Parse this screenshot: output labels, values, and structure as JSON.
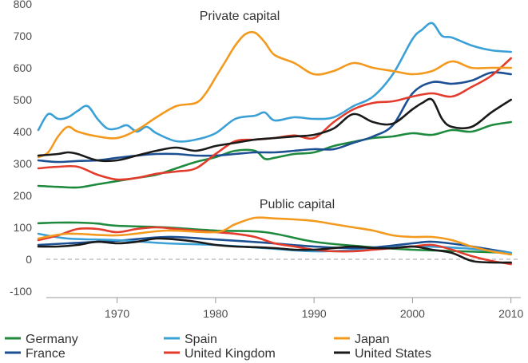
{
  "chart_data": {
    "type": "line",
    "panels": [
      {
        "title": "Private capital",
        "group": "private"
      },
      {
        "title": "Public capital",
        "group": "public"
      }
    ],
    "xlim": [
      1962,
      2011
    ],
    "ylim": [
      -100,
      800
    ],
    "x_ticks": [
      1970,
      1980,
      1990,
      2000,
      2010
    ],
    "y_ticks": [
      -100,
      0,
      100,
      200,
      300,
      400,
      500,
      600,
      700,
      800
    ],
    "zero_line": "dashed",
    "legend_position": "bottom",
    "series": [
      {
        "name": "Germany",
        "color": "#1e8a3e",
        "private": {
          "x": [
            1962,
            1964,
            1966,
            1968,
            1970,
            1972,
            1974,
            1976,
            1978,
            1980,
            1982,
            1984,
            1985,
            1986,
            1988,
            1990,
            1992,
            1994,
            1996,
            1998,
            2000,
            2002,
            2004,
            2006,
            2008,
            2010
          ],
          "y": [
            230,
            227,
            225,
            235,
            245,
            255,
            265,
            285,
            305,
            320,
            340,
            340,
            315,
            318,
            330,
            335,
            355,
            368,
            380,
            385,
            395,
            390,
            405,
            400,
            420,
            430
          ]
        },
        "public": {
          "x": [
            1962,
            1964,
            1966,
            1968,
            1970,
            1975,
            1980,
            1985,
            1990,
            1995,
            2000,
            2005,
            2010
          ],
          "y": [
            113,
            115,
            115,
            112,
            105,
            100,
            90,
            85,
            55,
            40,
            30,
            25,
            20
          ]
        }
      },
      {
        "name": "France",
        "color": "#1d4f93",
        "private": {
          "x": [
            1962,
            1964,
            1966,
            1968,
            1970,
            1972,
            1974,
            1976,
            1978,
            1980,
            1982,
            1984,
            1986,
            1988,
            1990,
            1992,
            1994,
            1996,
            1998,
            2000,
            2002,
            2004,
            2006,
            2008,
            2010
          ],
          "y": [
            310,
            305,
            308,
            310,
            318,
            325,
            330,
            330,
            325,
            325,
            330,
            335,
            335,
            340,
            345,
            345,
            365,
            385,
            420,
            520,
            555,
            550,
            560,
            585,
            580
          ]
        },
        "public": {
          "x": [
            1962,
            1965,
            1970,
            1975,
            1980,
            1985,
            1990,
            1995,
            2000,
            2002,
            2005,
            2010
          ],
          "y": [
            45,
            50,
            58,
            70,
            62,
            52,
            40,
            35,
            50,
            55,
            45,
            20
          ]
        }
      },
      {
        "name": "Spain",
        "color": "#3aa0d6",
        "private": {
          "x": [
            1962,
            1963,
            1964,
            1965,
            1966,
            1967,
            1968,
            1969,
            1970,
            1971,
            1972,
            1973,
            1974,
            1976,
            1978,
            1980,
            1982,
            1984,
            1985,
            1986,
            1988,
            1990,
            1992,
            1994,
            1996,
            1998,
            2000,
            2001,
            2002,
            2003,
            2004,
            2006,
            2008,
            2010
          ],
          "y": [
            405,
            455,
            440,
            445,
            465,
            480,
            440,
            410,
            410,
            420,
            400,
            415,
            395,
            370,
            375,
            395,
            440,
            450,
            460,
            435,
            445,
            440,
            445,
            480,
            510,
            580,
            690,
            720,
            740,
            700,
            695,
            670,
            655,
            650
          ]
        },
        "public": {
          "x": [
            1962,
            1965,
            1970,
            1975,
            1980,
            1985,
            1990,
            1995,
            2000,
            2005,
            2010
          ],
          "y": [
            80,
            65,
            60,
            50,
            45,
            35,
            25,
            30,
            40,
            35,
            20
          ]
        }
      },
      {
        "name": "United Kingdom",
        "color": "#e33c2c",
        "private": {
          "x": [
            1962,
            1964,
            1966,
            1968,
            1970,
            1972,
            1974,
            1976,
            1978,
            1980,
            1982,
            1984,
            1986,
            1988,
            1990,
            1992,
            1994,
            1996,
            1998,
            2000,
            2002,
            2004,
            2006,
            2008,
            2010
          ],
          "y": [
            285,
            290,
            290,
            265,
            250,
            255,
            268,
            275,
            285,
            330,
            370,
            375,
            380,
            388,
            380,
            430,
            470,
            490,
            495,
            510,
            520,
            510,
            540,
            575,
            630
          ]
        },
        "public": {
          "x": [
            1962,
            1964,
            1966,
            1968,
            1970,
            1972,
            1974,
            1976,
            1978,
            1980,
            1982,
            1984,
            1986,
            1988,
            1990,
            1992,
            1994,
            1996,
            1998,
            2000,
            2002,
            2004,
            2006,
            2008,
            2010
          ],
          "y": [
            60,
            75,
            95,
            95,
            85,
            95,
            100,
            95,
            90,
            85,
            80,
            70,
            50,
            40,
            30,
            25,
            25,
            30,
            35,
            40,
            45,
            30,
            10,
            -5,
            -15
          ]
        }
      },
      {
        "name": "Japan",
        "color": "#f39a1e",
        "private": {
          "x": [
            1962,
            1963,
            1964,
            1965,
            1966,
            1968,
            1970,
            1972,
            1974,
            1976,
            1978,
            1979,
            1980,
            1981,
            1982,
            1983,
            1984,
            1985,
            1986,
            1988,
            1990,
            1992,
            1994,
            1996,
            1998,
            2000,
            2002,
            2004,
            2006,
            2008,
            2010
          ],
          "y": [
            320,
            335,
            385,
            415,
            400,
            385,
            380,
            405,
            445,
            480,
            490,
            520,
            570,
            620,
            670,
            705,
            710,
            680,
            640,
            615,
            580,
            590,
            615,
            600,
            590,
            580,
            590,
            620,
            600,
            600,
            600
          ]
        },
        "public": {
          "x": [
            1962,
            1965,
            1970,
            1975,
            1980,
            1982,
            1984,
            1986,
            1988,
            1990,
            1992,
            1994,
            1996,
            1998,
            2000,
            2002,
            2004,
            2006,
            2008,
            2010
          ],
          "y": [
            65,
            80,
            75,
            90,
            85,
            110,
            130,
            128,
            125,
            120,
            110,
            100,
            90,
            75,
            70,
            70,
            60,
            40,
            25,
            15
          ]
        }
      },
      {
        "name": "United States",
        "color": "#1a1a1a",
        "private": {
          "x": [
            1962,
            1964,
            1965,
            1966,
            1968,
            1970,
            1972,
            1974,
            1976,
            1978,
            1980,
            1982,
            1984,
            1986,
            1988,
            1990,
            1992,
            1994,
            1996,
            1998,
            2000,
            2001,
            2002,
            2003,
            2004,
            2006,
            2008,
            2010
          ],
          "y": [
            325,
            330,
            335,
            330,
            310,
            310,
            325,
            340,
            350,
            340,
            355,
            365,
            375,
            380,
            385,
            390,
            410,
            455,
            430,
            425,
            470,
            490,
            500,
            440,
            415,
            415,
            460,
            500
          ]
        },
        "public": {
          "x": [
            1962,
            1964,
            1966,
            1968,
            1970,
            1972,
            1974,
            1976,
            1978,
            1980,
            1982,
            1984,
            1986,
            1988,
            1990,
            1992,
            1994,
            1996,
            1998,
            2000,
            2002,
            2004,
            2006,
            2008,
            2010
          ],
          "y": [
            40,
            40,
            45,
            55,
            50,
            55,
            65,
            62,
            55,
            45,
            40,
            38,
            35,
            30,
            30,
            35,
            40,
            35,
            35,
            40,
            30,
            20,
            -5,
            -10,
            -10
          ]
        }
      }
    ]
  }
}
